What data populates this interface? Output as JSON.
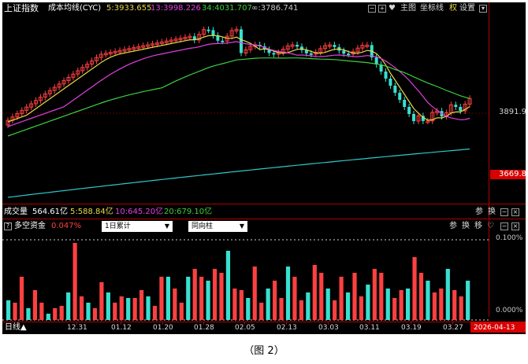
{
  "header": {
    "index_name": "上证指数",
    "indicator": "成本均线(CYC)",
    "ma5": "5:3933.655",
    "ma13": "13:3998.226",
    "ma34": "34:4031.707",
    "ma_inf": "∞:3786.741",
    "toolbar": {
      "main": "主图",
      "coord": "坐标线",
      "right": "权",
      "settings": "设置"
    }
  },
  "price_axis": {
    "level_label": "3891.9",
    "current_label": "3669.8"
  },
  "volume": {
    "title": "成交量",
    "total": "564.61亿",
    "ma5": "5:588.84亿",
    "ma10": "10:645.20亿",
    "ma20": "20:679.10亿",
    "buttons": [
      "参",
      "换"
    ]
  },
  "fund": {
    "title": "多空资金",
    "value": "0.047%",
    "select1": "1日累计",
    "select2": "同向柱",
    "buttons": [
      "参",
      "换",
      "移"
    ],
    "axis_top": "0.100%",
    "axis_bottom": "0.000%"
  },
  "bottom": {
    "period": "日线▲",
    "dates": [
      "12.31",
      "01.12",
      "01.20",
      "01.28",
      "02.05",
      "02.13",
      "03.03",
      "03.11",
      "03.19",
      "03.27"
    ],
    "current_date": "2026-04-13"
  },
  "caption": "（图 2）",
  "colors": {
    "up": "#ff4040",
    "down": "#38e0d0",
    "ma5": "#e8d84a",
    "ma13": "#e040e0",
    "ma34": "#3cd03c",
    "ma_inf": "#30c8c8",
    "yellow_text": "#e8d84a",
    "cyan_text": "#64e6f0"
  },
  "icons": [
    "help-icon",
    "minus-icon",
    "plus-icon",
    "heart-icon",
    "close-icon",
    "settings-icon"
  ]
}
